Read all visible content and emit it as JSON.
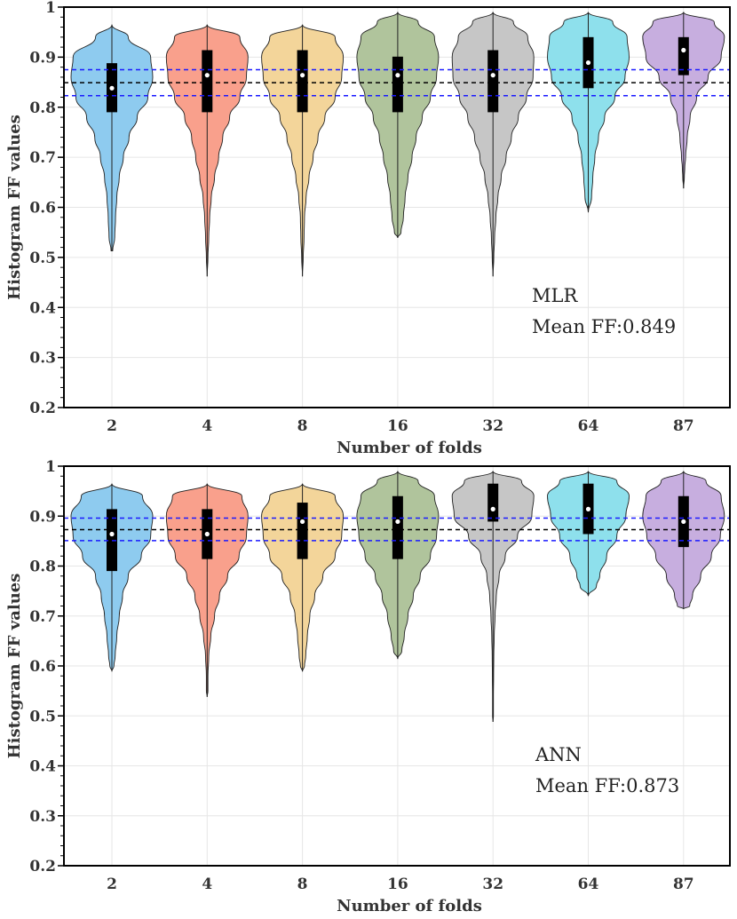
{
  "chart_data": [
    {
      "type": "violin",
      "panel": "top",
      "xlabel": "Number of folds",
      "ylabel": "Histogram FF values",
      "ylim": [
        0.2,
        1.0
      ],
      "yticks": [
        "0.2",
        "0.3",
        "0.4",
        "0.5",
        "0.6",
        "0.7",
        "0.8",
        "0.9",
        "1"
      ],
      "categories": [
        "2",
        "4",
        "8",
        "16",
        "32",
        "64",
        "87"
      ],
      "colors": [
        "#8ecbef",
        "#f9a08c",
        "#f3d59a",
        "#b0c49c",
        "#c6c6c6",
        "#8ee0ec",
        "#c7aedf"
      ],
      "annotation": {
        "model": "MLR",
        "mean_text": "Mean FF:0.849"
      },
      "reference_lines": [
        {
          "value": 0.875,
          "color": "#1a1aff",
          "style": "dashed"
        },
        {
          "value": 0.849,
          "color": "#000000",
          "style": "dashed"
        },
        {
          "value": 0.823,
          "color": "#1a1aff",
          "style": "dashed"
        }
      ],
      "violins": [
        {
          "category": "2",
          "min": 0.513,
          "max": 0.965,
          "q1": 0.79,
          "median": 0.838,
          "q3": 0.888,
          "profile": [
            [
              0.965,
              0.0
            ],
            [
              0.94,
              0.4
            ],
            [
              0.9,
              0.95
            ],
            [
              0.86,
              1.0
            ],
            [
              0.82,
              0.88
            ],
            [
              0.78,
              0.62
            ],
            [
              0.74,
              0.42
            ],
            [
              0.7,
              0.28
            ],
            [
              0.66,
              0.18
            ],
            [
              0.62,
              0.12
            ],
            [
              0.58,
              0.09
            ],
            [
              0.54,
              0.07
            ],
            [
              0.513,
              0.02
            ]
          ]
        },
        {
          "category": "4",
          "min": 0.462,
          "max": 0.965,
          "q1": 0.79,
          "median": 0.864,
          "q3": 0.914,
          "profile": [
            [
              0.965,
              0.0
            ],
            [
              0.94,
              0.8
            ],
            [
              0.9,
              1.0
            ],
            [
              0.86,
              0.96
            ],
            [
              0.82,
              0.8
            ],
            [
              0.78,
              0.55
            ],
            [
              0.74,
              0.38
            ],
            [
              0.7,
              0.28
            ],
            [
              0.66,
              0.18
            ],
            [
              0.62,
              0.1
            ],
            [
              0.58,
              0.06
            ],
            [
              0.54,
              0.04
            ],
            [
              0.5,
              0.02
            ],
            [
              0.462,
              0.0
            ]
          ]
        },
        {
          "category": "8",
          "min": 0.462,
          "max": 0.965,
          "q1": 0.79,
          "median": 0.864,
          "q3": 0.914,
          "profile": [
            [
              0.965,
              0.0
            ],
            [
              0.94,
              0.8
            ],
            [
              0.9,
              1.0
            ],
            [
              0.86,
              0.96
            ],
            [
              0.82,
              0.8
            ],
            [
              0.78,
              0.55
            ],
            [
              0.74,
              0.38
            ],
            [
              0.7,
              0.26
            ],
            [
              0.66,
              0.16
            ],
            [
              0.62,
              0.09
            ],
            [
              0.58,
              0.05
            ],
            [
              0.54,
              0.04
            ],
            [
              0.5,
              0.02
            ],
            [
              0.462,
              0.0
            ]
          ]
        },
        {
          "category": "16",
          "min": 0.539,
          "max": 0.99,
          "q1": 0.79,
          "median": 0.864,
          "q3": 0.901,
          "profile": [
            [
              0.99,
              0.0
            ],
            [
              0.97,
              0.5
            ],
            [
              0.94,
              0.9
            ],
            [
              0.9,
              1.0
            ],
            [
              0.86,
              0.95
            ],
            [
              0.82,
              0.8
            ],
            [
              0.78,
              0.6
            ],
            [
              0.74,
              0.45
            ],
            [
              0.7,
              0.35
            ],
            [
              0.66,
              0.25
            ],
            [
              0.62,
              0.18
            ],
            [
              0.58,
              0.14
            ],
            [
              0.55,
              0.08
            ],
            [
              0.539,
              0.0
            ]
          ]
        },
        {
          "category": "32",
          "min": 0.462,
          "max": 0.99,
          "q1": 0.79,
          "median": 0.864,
          "q3": 0.914,
          "profile": [
            [
              0.99,
              0.0
            ],
            [
              0.97,
              0.5
            ],
            [
              0.94,
              0.85
            ],
            [
              0.9,
              1.0
            ],
            [
              0.86,
              0.98
            ],
            [
              0.82,
              0.82
            ],
            [
              0.78,
              0.62
            ],
            [
              0.74,
              0.45
            ],
            [
              0.7,
              0.32
            ],
            [
              0.66,
              0.2
            ],
            [
              0.62,
              0.12
            ],
            [
              0.58,
              0.07
            ],
            [
              0.54,
              0.04
            ],
            [
              0.5,
              0.02
            ],
            [
              0.462,
              0.0
            ]
          ]
        },
        {
          "category": "64",
          "min": 0.59,
          "max": 0.99,
          "q1": 0.838,
          "median": 0.889,
          "q3": 0.94,
          "profile": [
            [
              0.99,
              0.0
            ],
            [
              0.97,
              0.6
            ],
            [
              0.94,
              0.95
            ],
            [
              0.9,
              1.0
            ],
            [
              0.86,
              0.9
            ],
            [
              0.82,
              0.65
            ],
            [
              0.78,
              0.4
            ],
            [
              0.74,
              0.25
            ],
            [
              0.7,
              0.16
            ],
            [
              0.66,
              0.11
            ],
            [
              0.62,
              0.08
            ],
            [
              0.59,
              0.0
            ]
          ]
        },
        {
          "category": "87",
          "min": 0.638,
          "max": 0.99,
          "q1": 0.864,
          "median": 0.914,
          "q3": 0.94,
          "profile": [
            [
              0.99,
              0.0
            ],
            [
              0.97,
              0.75
            ],
            [
              0.94,
              1.0
            ],
            [
              0.9,
              0.92
            ],
            [
              0.86,
              0.6
            ],
            [
              0.82,
              0.32
            ],
            [
              0.78,
              0.16
            ],
            [
              0.74,
              0.09
            ],
            [
              0.7,
              0.05
            ],
            [
              0.68,
              0.03
            ],
            [
              0.66,
              0.02
            ],
            [
              0.638,
              0.0
            ]
          ]
        }
      ]
    },
    {
      "type": "violin",
      "panel": "bottom",
      "xlabel": "Number of folds",
      "ylabel": "Histogram FF values",
      "ylim": [
        0.2,
        1.0
      ],
      "yticks": [
        "0.2",
        "0.3",
        "0.4",
        "0.5",
        "0.6",
        "0.7",
        "0.8",
        "0.9",
        "1"
      ],
      "categories": [
        "2",
        "4",
        "8",
        "16",
        "32",
        "64",
        "87"
      ],
      "colors": [
        "#8ecbef",
        "#f9a08c",
        "#f3d59a",
        "#b0c49c",
        "#c6c6c6",
        "#8ee0ec",
        "#c7aedf"
      ],
      "annotation": {
        "model": "ANN",
        "mean_text": "Mean FF:0.873"
      },
      "reference_lines": [
        {
          "value": 0.896,
          "color": "#1a1aff",
          "style": "dashed"
        },
        {
          "value": 0.873,
          "color": "#000000",
          "style": "dashed"
        },
        {
          "value": 0.851,
          "color": "#1a1aff",
          "style": "dashed"
        }
      ],
      "violins": [
        {
          "category": "2",
          "min": 0.589,
          "max": 0.965,
          "q1": 0.79,
          "median": 0.864,
          "q3": 0.914,
          "profile": [
            [
              0.965,
              0.0
            ],
            [
              0.94,
              0.75
            ],
            [
              0.9,
              1.0
            ],
            [
              0.86,
              0.95
            ],
            [
              0.82,
              0.72
            ],
            [
              0.78,
              0.4
            ],
            [
              0.74,
              0.26
            ],
            [
              0.7,
              0.18
            ],
            [
              0.66,
              0.12
            ],
            [
              0.62,
              0.08
            ],
            [
              0.6,
              0.05
            ],
            [
              0.589,
              0.0
            ]
          ]
        },
        {
          "category": "4",
          "min": 0.538,
          "max": 0.965,
          "q1": 0.814,
          "median": 0.864,
          "q3": 0.914,
          "profile": [
            [
              0.965,
              0.0
            ],
            [
              0.94,
              0.85
            ],
            [
              0.9,
              1.0
            ],
            [
              0.86,
              0.96
            ],
            [
              0.82,
              0.78
            ],
            [
              0.78,
              0.5
            ],
            [
              0.74,
              0.3
            ],
            [
              0.7,
              0.18
            ],
            [
              0.66,
              0.09
            ],
            [
              0.62,
              0.04
            ],
            [
              0.58,
              0.02
            ],
            [
              0.55,
              0.02
            ],
            [
              0.538,
              0.0
            ]
          ]
        },
        {
          "category": "8",
          "min": 0.589,
          "max": 0.965,
          "q1": 0.814,
          "median": 0.889,
          "q3": 0.927,
          "profile": [
            [
              0.965,
              0.0
            ],
            [
              0.94,
              0.8
            ],
            [
              0.9,
              1.0
            ],
            [
              0.86,
              0.96
            ],
            [
              0.82,
              0.8
            ],
            [
              0.78,
              0.5
            ],
            [
              0.74,
              0.3
            ],
            [
              0.7,
              0.18
            ],
            [
              0.66,
              0.12
            ],
            [
              0.62,
              0.08
            ],
            [
              0.6,
              0.05
            ],
            [
              0.589,
              0.0
            ]
          ]
        },
        {
          "category": "16",
          "min": 0.614,
          "max": 0.99,
          "q1": 0.814,
          "median": 0.889,
          "q3": 0.94,
          "profile": [
            [
              0.99,
              0.0
            ],
            [
              0.97,
              0.5
            ],
            [
              0.94,
              0.9
            ],
            [
              0.9,
              1.0
            ],
            [
              0.86,
              0.95
            ],
            [
              0.82,
              0.8
            ],
            [
              0.78,
              0.55
            ],
            [
              0.74,
              0.38
            ],
            [
              0.7,
              0.25
            ],
            [
              0.66,
              0.16
            ],
            [
              0.63,
              0.1
            ],
            [
              0.614,
              0.0
            ]
          ]
        },
        {
          "category": "32",
          "min": 0.488,
          "max": 0.99,
          "q1": 0.889,
          "median": 0.914,
          "q3": 0.965,
          "profile": [
            [
              0.99,
              0.0
            ],
            [
              0.97,
              0.7
            ],
            [
              0.94,
              1.0
            ],
            [
              0.9,
              0.95
            ],
            [
              0.86,
              0.6
            ],
            [
              0.82,
              0.3
            ],
            [
              0.78,
              0.15
            ],
            [
              0.74,
              0.08
            ],
            [
              0.7,
              0.05
            ],
            [
              0.66,
              0.03
            ],
            [
              0.62,
              0.02
            ],
            [
              0.58,
              0.015
            ],
            [
              0.54,
              0.01
            ],
            [
              0.5,
              0.01
            ],
            [
              0.488,
              0.0
            ]
          ]
        },
        {
          "category": "64",
          "min": 0.74,
          "max": 0.99,
          "q1": 0.864,
          "median": 0.914,
          "q3": 0.965,
          "profile": [
            [
              0.99,
              0.0
            ],
            [
              0.97,
              0.7
            ],
            [
              0.94,
              1.0
            ],
            [
              0.9,
              0.92
            ],
            [
              0.86,
              0.7
            ],
            [
              0.82,
              0.45
            ],
            [
              0.78,
              0.28
            ],
            [
              0.76,
              0.2
            ],
            [
              0.74,
              0.0
            ]
          ]
        },
        {
          "category": "87",
          "min": 0.714,
          "max": 0.99,
          "q1": 0.838,
          "median": 0.889,
          "q3": 0.94,
          "profile": [
            [
              0.99,
              0.0
            ],
            [
              0.97,
              0.55
            ],
            [
              0.94,
              0.92
            ],
            [
              0.9,
              1.0
            ],
            [
              0.86,
              0.9
            ],
            [
              0.82,
              0.68
            ],
            [
              0.78,
              0.42
            ],
            [
              0.74,
              0.22
            ],
            [
              0.72,
              0.15
            ],
            [
              0.714,
              0.0
            ]
          ]
        }
      ]
    }
  ]
}
